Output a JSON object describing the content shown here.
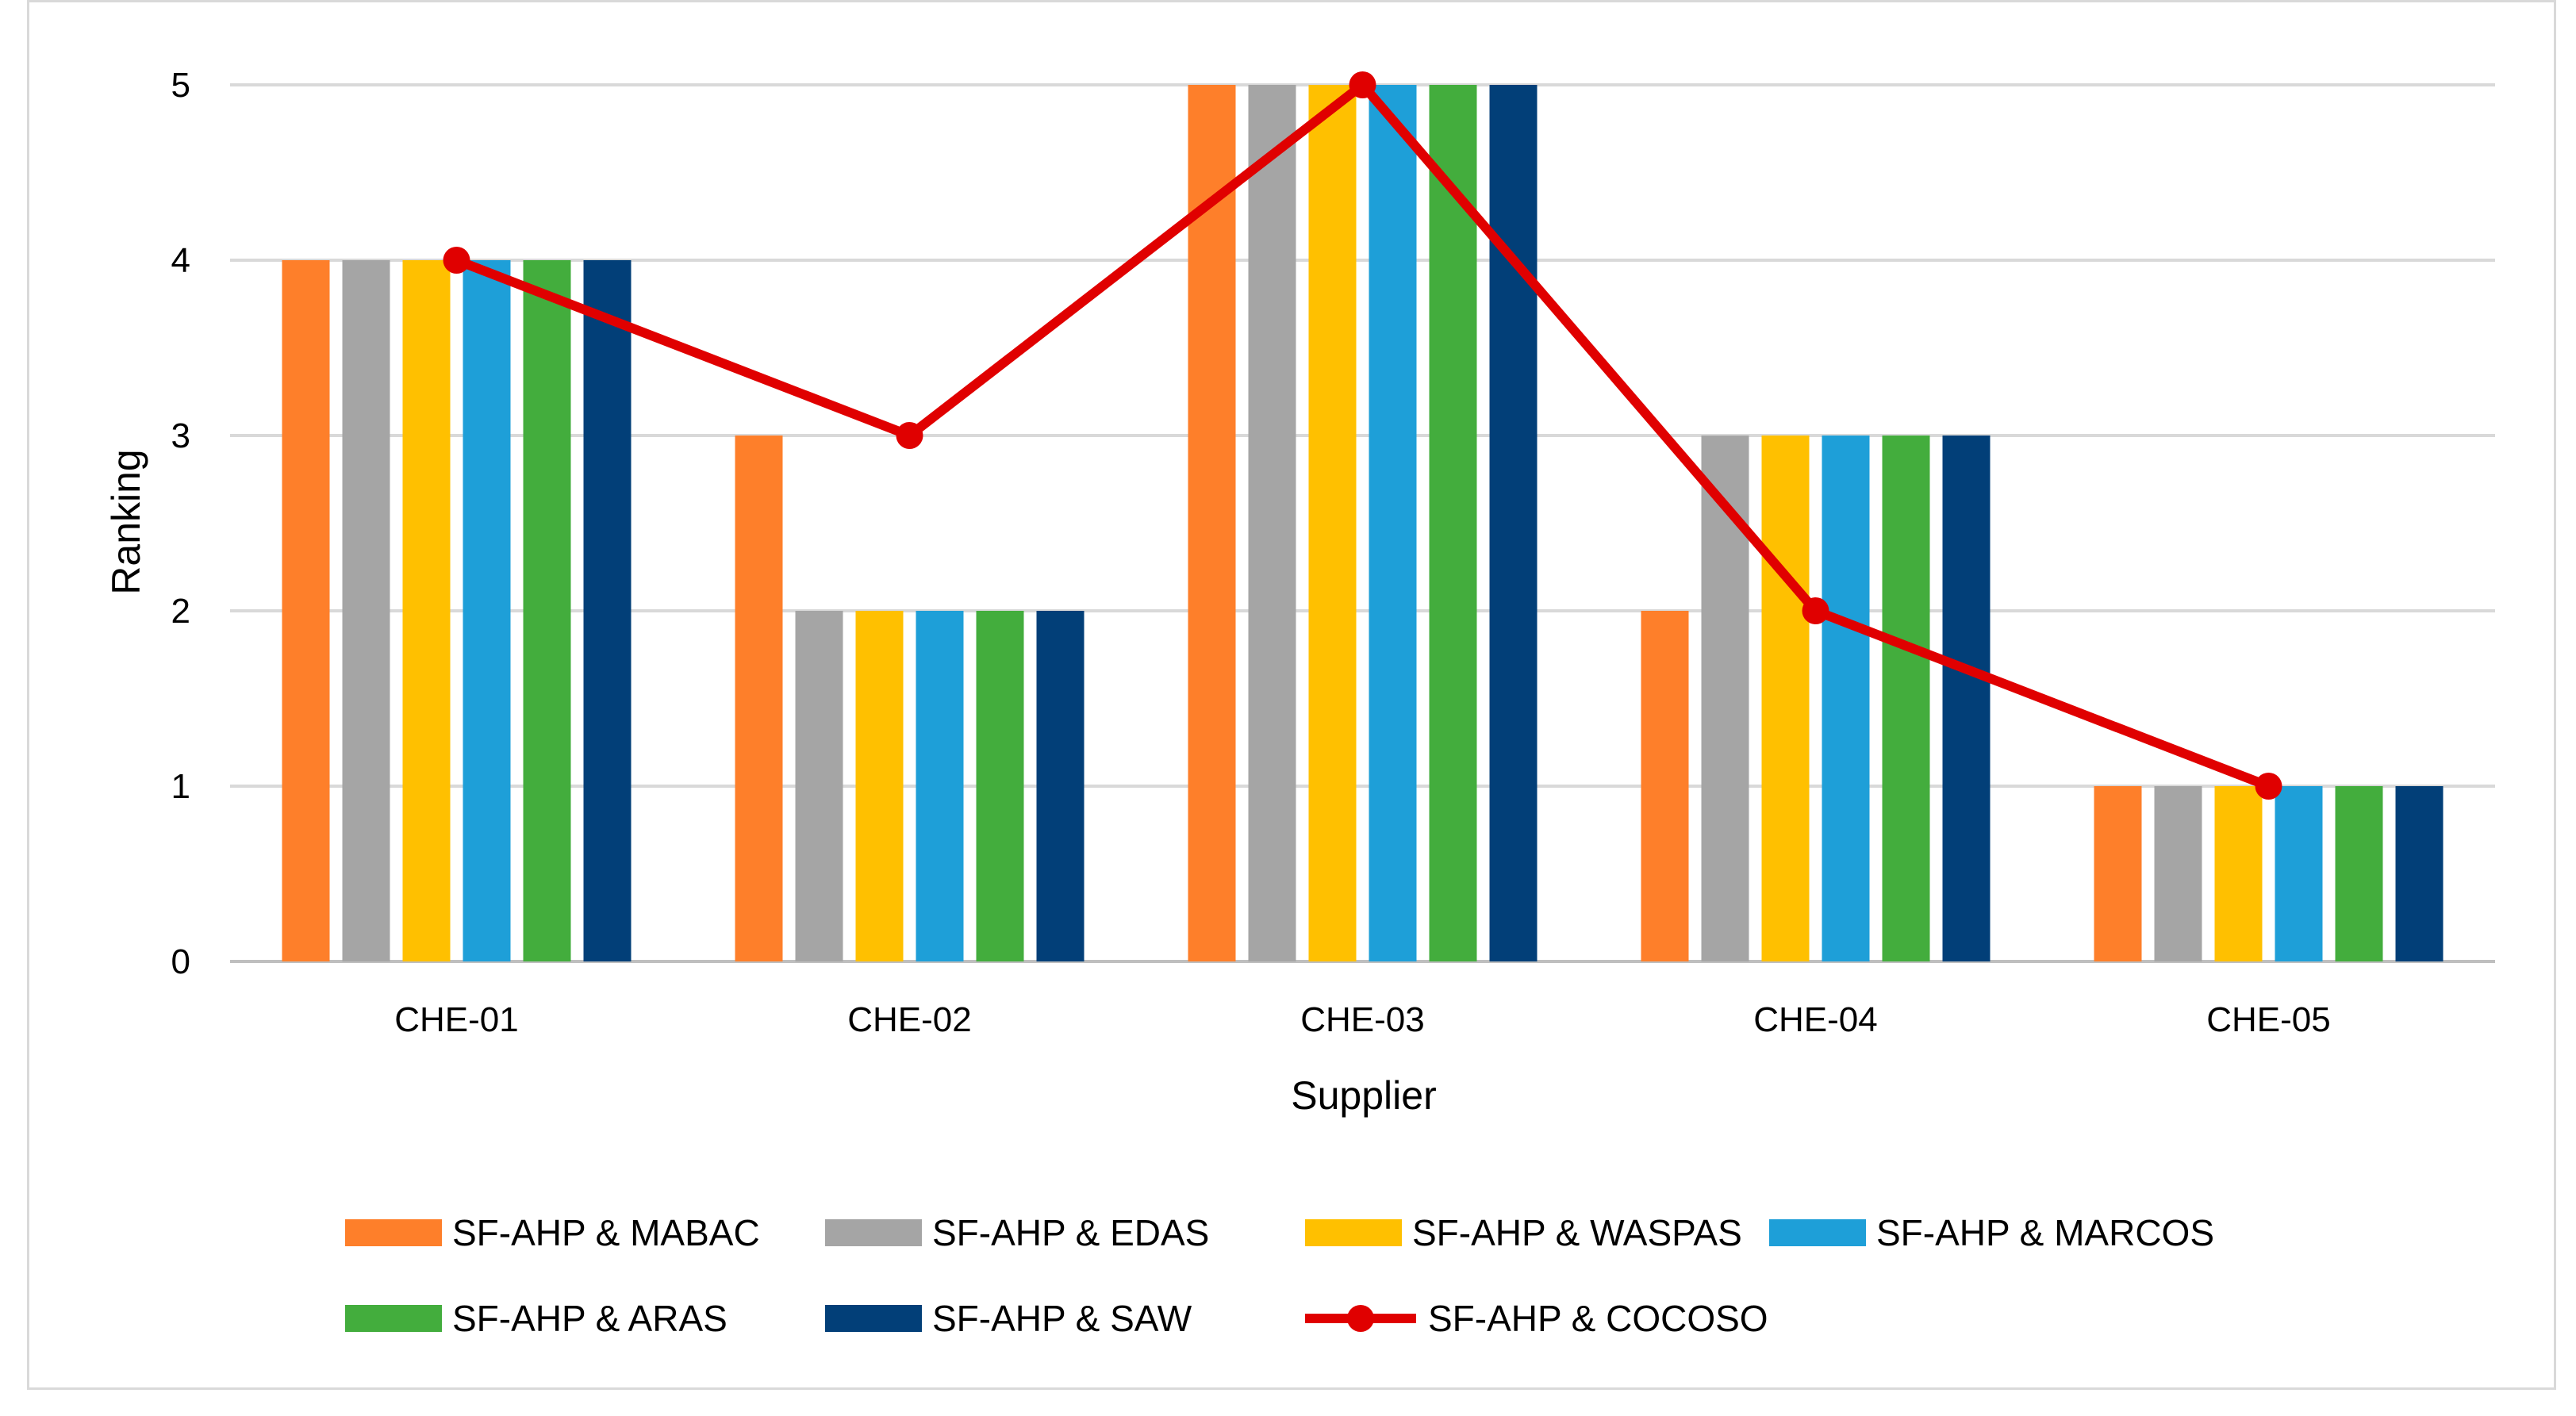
{
  "chart_data": {
    "type": "bar",
    "title": "",
    "xlabel": "Supplier",
    "ylabel": "Ranking",
    "ylim": [
      0,
      5
    ],
    "yticks": [
      0,
      1,
      2,
      3,
      4,
      5
    ],
    "grid": true,
    "legend_position": "bottom",
    "categories": [
      "CHE-01",
      "CHE-02",
      "CHE-03",
      "CHE-04",
      "CHE-05"
    ],
    "series": [
      {
        "name": "SF-AHP & MABAC",
        "type": "bar",
        "color": "#fe7f2a",
        "values": [
          4,
          3,
          5,
          2,
          1
        ]
      },
      {
        "name": "SF-AHP & EDAS",
        "type": "bar",
        "color": "#a5a5a5",
        "values": [
          4,
          2,
          5,
          3,
          1
        ]
      },
      {
        "name": "SF-AHP & WASPAS",
        "type": "bar",
        "color": "#ffc000",
        "values": [
          4,
          2,
          5,
          3,
          1
        ]
      },
      {
        "name": "SF-AHP & MARCOS",
        "type": "bar",
        "color": "#1e9fd8",
        "values": [
          4,
          2,
          5,
          3,
          1
        ]
      },
      {
        "name": "SF-AHP & ARAS",
        "type": "bar",
        "color": "#43ad3d",
        "values": [
          4,
          2,
          5,
          3,
          1
        ]
      },
      {
        "name": "SF-AHP & SAW",
        "type": "bar",
        "color": "#023f78",
        "values": [
          4,
          2,
          5,
          3,
          1
        ]
      },
      {
        "name": "SF-AHP & COCOSO",
        "type": "line",
        "color": "#e00000",
        "values": [
          4,
          3,
          5,
          2,
          1
        ]
      }
    ]
  }
}
